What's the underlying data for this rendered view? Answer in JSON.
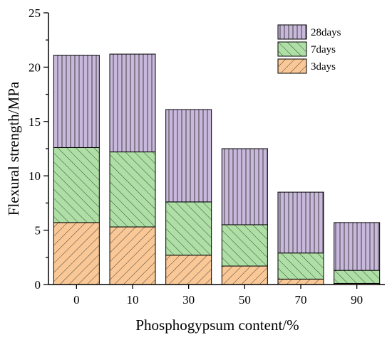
{
  "chart_data": {
    "type": "bar",
    "stacked": true,
    "categories": [
      "0",
      "10",
      "30",
      "50",
      "70",
      "90"
    ],
    "series": [
      {
        "name": "3days",
        "values": [
          5.7,
          5.3,
          2.7,
          1.7,
          0.5,
          0.1
        ],
        "color": "#f9c896",
        "pattern": "diagonal-slash"
      },
      {
        "name": "7days",
        "values": [
          6.9,
          6.9,
          4.9,
          3.8,
          2.4,
          1.2
        ],
        "color": "#aee0a6",
        "pattern": "diagonal-backslash"
      },
      {
        "name": "28days",
        "values": [
          8.5,
          9.0,
          8.5,
          7.0,
          5.6,
          4.4
        ],
        "color": "#c8b8dc",
        "pattern": "vertical-lines"
      }
    ],
    "totals": [
      21.1,
      21.2,
      16.1,
      12.5,
      8.5,
      5.7
    ],
    "xlabel": "Phosphogypsum content/%",
    "ylabel": "Flexural strength/MPa",
    "ylim": [
      0,
      25
    ],
    "yticks": [
      "0",
      "5",
      "10",
      "15",
      "20",
      "25"
    ],
    "grid": false,
    "legend": {
      "placement": "top-right",
      "order": [
        "28days",
        "7days",
        "3days"
      ]
    }
  }
}
